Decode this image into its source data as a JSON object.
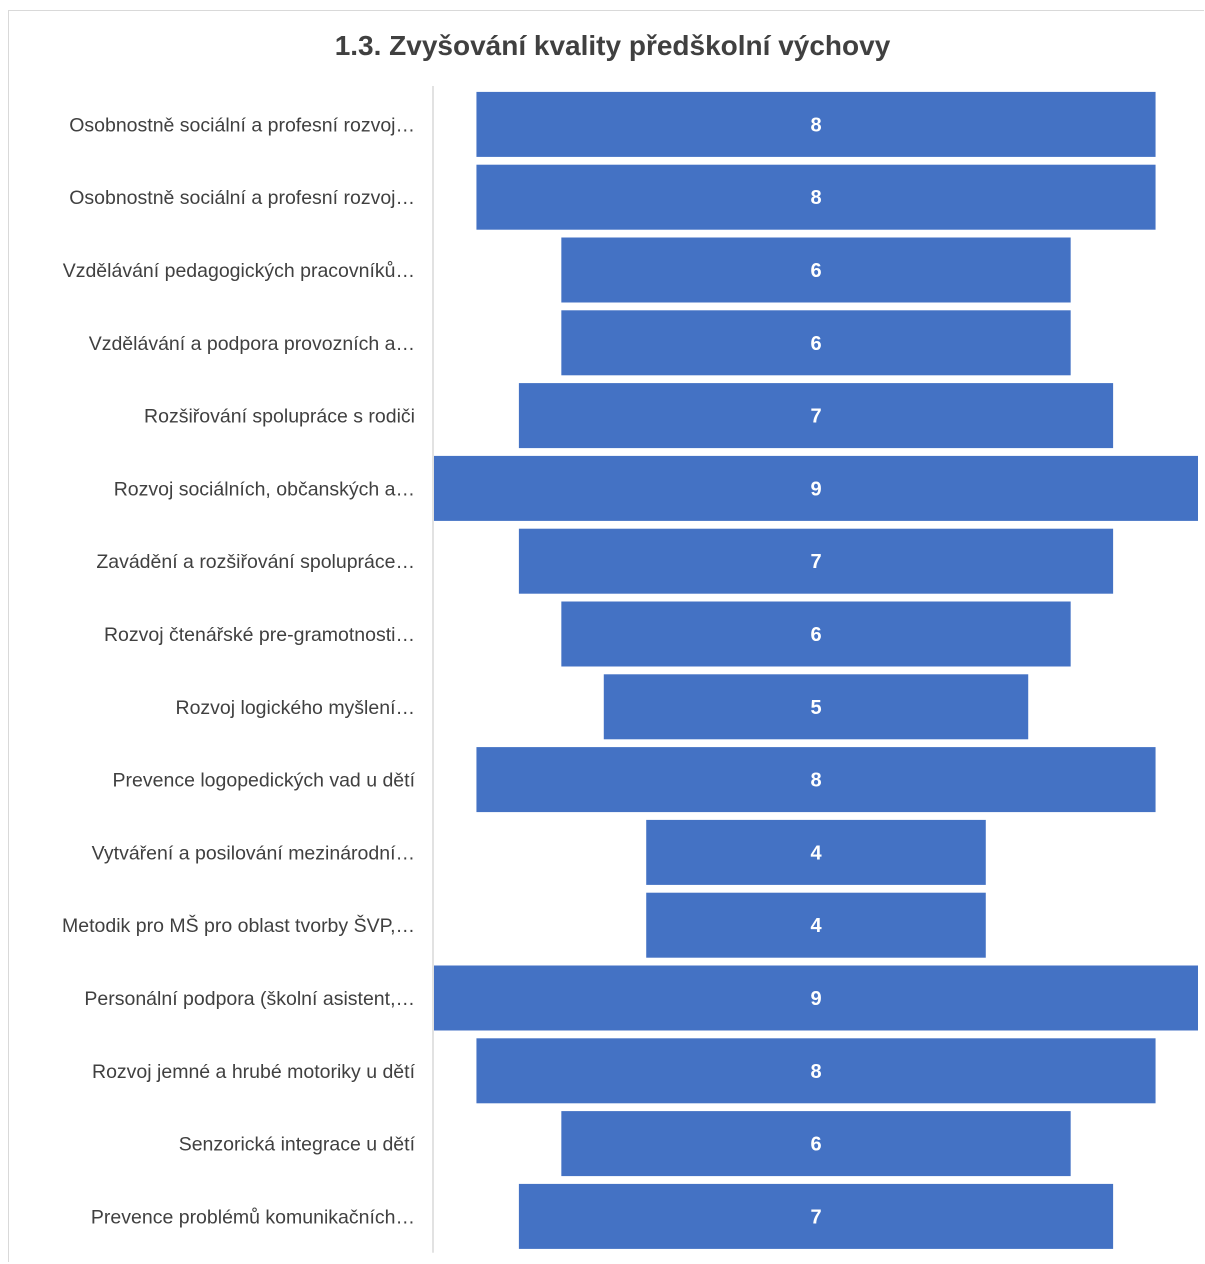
{
  "chart_data": {
    "type": "bar",
    "orientation": "horizontal-centered",
    "title": "1.3.  Zvyšování kvality předškolní výchovy",
    "categories": [
      "Osobnostně sociální a profesní rozvoj…",
      "Osobnostně sociální a profesní rozvoj…",
      "Vzdělávání pedagogických pracovníků…",
      "Vzdělávání a podpora provozních a…",
      "Rozšiřování spolupráce s rodiči",
      "Rozvoj sociálních, občanských a…",
      "Zavádění a rozšiřování spolupráce…",
      "Rozvoj čtenářské pre-gramotnosti…",
      "Rozvoj logického myšlení…",
      "Prevence logopedických vad u dětí",
      "Vytváření a posilování mezinárodní…",
      "Metodik pro MŠ pro oblast tvorby ŠVP,…",
      "Personální podpora (školní asistent,…",
      "Rozvoj jemné a hrubé motoriky u dětí",
      "Senzorická integrace u dětí",
      "Prevence problémů komunikačních…"
    ],
    "values": [
      8,
      8,
      6,
      6,
      7,
      9,
      7,
      6,
      5,
      8,
      4,
      4,
      9,
      8,
      6,
      7
    ],
    "xlim": [
      0,
      9
    ],
    "bar_color": "#4472c4",
    "label_color": "#ffffff",
    "axis_label_color": "#404040",
    "data_labels": true,
    "grid": false,
    "legend": "none"
  }
}
